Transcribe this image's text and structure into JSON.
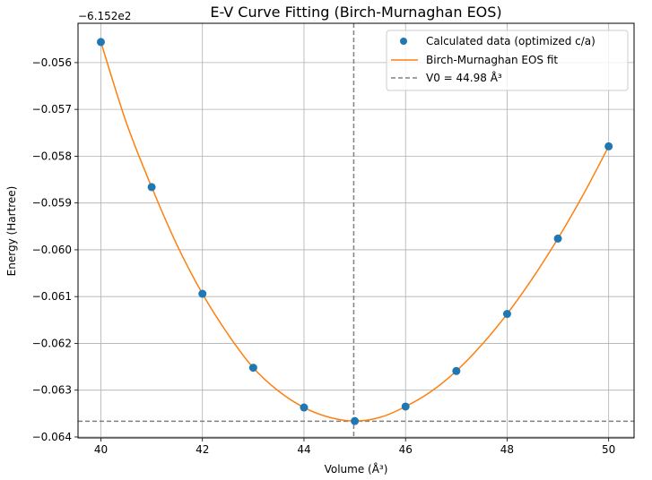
{
  "chart_data": {
    "type": "line",
    "title": "E-V Curve Fitting (Birch-Murnaghan EOS)",
    "xlabel": "Volume (Å³)",
    "ylabel": "Energy (Hartree)",
    "y_offset_label": "−6.152e2",
    "xlim": [
      39.55,
      50.5
    ],
    "ylim": [
      -0.06402,
      -0.05516
    ],
    "x_ticks": [
      40,
      42,
      44,
      46,
      48,
      50
    ],
    "x_tick_labels": [
      "40",
      "42",
      "44",
      "46",
      "48",
      "50"
    ],
    "y_ticks": [
      -0.056,
      -0.057,
      -0.058,
      -0.059,
      -0.06,
      -0.061,
      -0.062,
      -0.063,
      -0.064
    ],
    "y_tick_labels": [
      "−0.056",
      "−0.057",
      "−0.058",
      "−0.059",
      "−0.060",
      "−0.061",
      "−0.062",
      "−0.063",
      "−0.064"
    ],
    "grid": true,
    "legend_position": "top-right",
    "series": [
      {
        "name": "Calculated data (optimized c/a)",
        "kind": "scatter",
        "color": "#1f77b4",
        "x": [
          40,
          41,
          42,
          43,
          44,
          45,
          46,
          47,
          48,
          49,
          50
        ],
        "y": [
          -0.05556,
          -0.05866,
          -0.06094,
          -0.06252,
          -0.06337,
          -0.06366,
          -0.06335,
          -0.06259,
          -0.06137,
          -0.05976,
          -0.05779
        ]
      },
      {
        "name": "Birch-Murnaghan EOS fit",
        "kind": "line",
        "color": "#ff7f0e",
        "x": [
          40,
          40.5,
          41,
          41.5,
          42,
          42.5,
          43,
          43.5,
          44,
          44.5,
          45,
          45.5,
          46,
          46.5,
          47,
          47.5,
          48,
          48.5,
          49,
          49.5,
          50
        ],
        "y": [
          -0.05556,
          -0.05728,
          -0.05866,
          -0.0599,
          -0.06094,
          -0.0618,
          -0.06252,
          -0.06302,
          -0.06337,
          -0.06358,
          -0.06366,
          -0.06358,
          -0.06335,
          -0.06303,
          -0.06259,
          -0.06203,
          -0.06137,
          -0.06061,
          -0.05976,
          -0.05882,
          -0.05779
        ]
      },
      {
        "name": "V0 = 44.98 Å³",
        "kind": "vline",
        "color": "#808080",
        "x": 44.98
      },
      {
        "name": "",
        "kind": "hline",
        "color": "#808080",
        "y": -0.063663
      }
    ]
  }
}
